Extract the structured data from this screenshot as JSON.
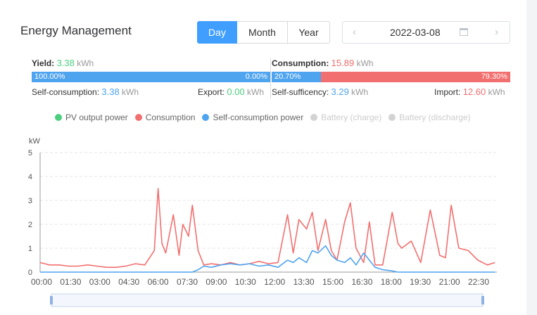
{
  "header": {
    "title": "Energy Management"
  },
  "period_tabs": [
    {
      "label": "Day"
    },
    {
      "label": "Month"
    },
    {
      "label": "Year"
    }
  ],
  "date_picker": {
    "value": "2022-03-08",
    "prev_icon": "chevron-left-icon",
    "next_icon": "chevron-right-icon",
    "calendar_icon": "calendar-icon"
  },
  "yield": {
    "label": "Yield:",
    "value": "3.38",
    "unit": "kWh",
    "self_pct": "100.00%",
    "export_pct": "0.00%",
    "self_fraction": 1.0,
    "self_label": "Self-consumption:",
    "self_value": "3.38",
    "self_unit": "kWh",
    "export_label": "Export:",
    "export_value": "0.00",
    "export_unit": "kWh"
  },
  "consumption": {
    "label": "Consumption:",
    "value": "15.89",
    "unit": "kWh",
    "suff_pct": "20.70%",
    "import_pct": "79.30%",
    "suff_fraction": 0.207,
    "suff_label": "Self-sufficency:",
    "suff_value": "3.29",
    "suff_unit": "kWh",
    "import_label": "Import:",
    "import_value": "12.60",
    "import_unit": "kWh"
  },
  "colors": {
    "accent": "#409eff",
    "green": "#4cd080",
    "red": "#f26f6f",
    "blue": "#4fa4ef",
    "gray": "#d3d3d3"
  },
  "legend": [
    {
      "label": "PV output power",
      "color": "#4cd080",
      "active": true
    },
    {
      "label": "Consumption",
      "color": "#f26f6f",
      "active": true
    },
    {
      "label": "Self-consumption power",
      "color": "#4fa4ef",
      "active": true
    },
    {
      "label": "Battery (charge)",
      "color": "#d3d3d3",
      "active": false
    },
    {
      "label": "Battery (discharge)",
      "color": "#d3d3d3",
      "active": false
    }
  ],
  "chart_data": {
    "type": "line",
    "ylabel": "kW",
    "ylim": [
      0,
      5
    ],
    "yticks": [
      "0",
      "1",
      "2",
      "3",
      "4",
      "5"
    ],
    "xticks": [
      "00:00",
      "01:30",
      "03:00",
      "04:30",
      "06:00",
      "07:30",
      "09:00",
      "10:30",
      "12:00",
      "13:30",
      "15:00",
      "16:30",
      "18:00",
      "19:30",
      "21:00",
      "22:30"
    ],
    "x_hours": [
      0,
      0.5,
      1,
      1.5,
      2,
      2.5,
      3,
      3.5,
      4,
      4.5,
      5,
      5.5,
      6,
      6.2,
      6.4,
      6.6,
      7,
      7.3,
      7.5,
      7.8,
      8,
      8.3,
      8.6,
      9,
      9.5,
      10,
      10.5,
      11,
      11.5,
      12,
      12.5,
      13,
      13.3,
      13.6,
      14,
      14.3,
      14.6,
      15,
      15.3,
      15.6,
      16,
      16.3,
      16.6,
      17,
      17.3,
      17.6,
      18,
      18.5,
      18.8,
      19,
      19.5,
      20,
      20.5,
      21,
      21.3,
      21.6,
      22,
      22.5,
      23,
      23.5,
      23.9
    ],
    "series": [
      {
        "name": "Consumption",
        "color": "#f26f6f",
        "values": [
          0.4,
          0.3,
          0.3,
          0.25,
          0.25,
          0.3,
          0.25,
          0.2,
          0.2,
          0.25,
          0.35,
          0.3,
          0.9,
          3.5,
          1.2,
          0.8,
          2.4,
          0.7,
          2.0,
          1.5,
          2.8,
          0.9,
          0.3,
          0.35,
          0.3,
          0.4,
          0.3,
          0.35,
          0.45,
          0.35,
          0.4,
          2.4,
          0.8,
          2.2,
          1.8,
          2.5,
          0.9,
          2.2,
          0.9,
          0.5,
          2.1,
          2.9,
          1.0,
          0.4,
          2.1,
          0.3,
          0.3,
          2.5,
          1.2,
          1.0,
          1.3,
          0.4,
          2.6,
          0.7,
          0.6,
          2.8,
          1.0,
          0.9,
          0.5,
          0.3,
          0.4
        ]
      },
      {
        "name": "Self-consumption power",
        "color": "#4fa4ef",
        "values": [
          0,
          0,
          0,
          0,
          0,
          0,
          0,
          0,
          0,
          0,
          0,
          0,
          0,
          0,
          0,
          0,
          0,
          0,
          0,
          0,
          0,
          0.1,
          0.25,
          0.2,
          0.3,
          0.35,
          0.3,
          0.35,
          0.25,
          0.3,
          0.2,
          0.5,
          0.4,
          0.6,
          0.4,
          0.9,
          0.8,
          1.1,
          0.7,
          0.5,
          0.4,
          0.6,
          0.3,
          0.8,
          0.5,
          0.2,
          0.1,
          0.05,
          0,
          0,
          0,
          0,
          0,
          0,
          0,
          0,
          0,
          0,
          0,
          0,
          0
        ]
      }
    ]
  }
}
